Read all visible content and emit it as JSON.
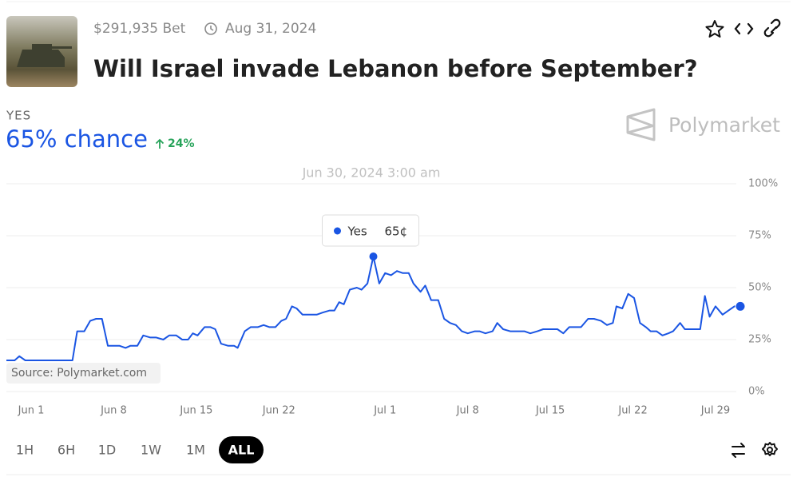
{
  "header": {
    "volume": "$291,935 Bet",
    "end_date": "Aug 31, 2024",
    "title": "Will Israel invade Lebanon before September?"
  },
  "outcome": {
    "label": "YES",
    "chance": "65% chance",
    "change": "24%"
  },
  "brand": "Polymarket",
  "source": "Source: Polymarket.com",
  "ranges": [
    "1H",
    "6H",
    "1D",
    "1W",
    "1M",
    "ALL"
  ],
  "chart_data": {
    "type": "line",
    "x": [
      -1.1,
      -0.4,
      0.0,
      0.5,
      4.5,
      4.9,
      5.5,
      6.0,
      6.5,
      7.0,
      7.5,
      8.5,
      9.0,
      9.4,
      10.0,
      10.5,
      11.1,
      11.6,
      12.2,
      12.7,
      13.3,
      13.8,
      14.3,
      14.7,
      15.1,
      15.7,
      16.2,
      16.6,
      17.1,
      17.7,
      18.2,
      18.5,
      19.1,
      19.6,
      20.2,
      20.7,
      21.2,
      21.7,
      22.2,
      22.6,
      23.1,
      23.5,
      24.0,
      24.6,
      25.2,
      25.7,
      26.3,
      26.7,
      27.1,
      27.5,
      28.0,
      28.6,
      29.0,
      29.5,
      30.0,
      30.5,
      31.0,
      31.5,
      32.0,
      32.5,
      33.0,
      33.4,
      34.0,
      34.4,
      34.9,
      35.5,
      36.0,
      36.5,
      37.0,
      37.5,
      38.0,
      38.6,
      39.0,
      39.5,
      40.1,
      40.5,
      41.0,
      41.6,
      42.1,
      42.8,
      43.3,
      43.9,
      44.4,
      45.1,
      45.6,
      46.1,
      46.6,
      47.1,
      47.6,
      48.2,
      48.7,
      49.3,
      49.8,
      50.3,
      50.6,
      51.1,
      51.6,
      52.1,
      52.6,
      53.1,
      53.5,
      54.0,
      54.5,
      55.0,
      55.4,
      56.0,
      56.4,
      57.1,
      57.7,
      58.1,
      58.5,
      59.0,
      59.6,
      60.1,
      60.6,
      61.1
    ],
    "series": [
      {
        "name": "Yes",
        "color": "#1a55e3",
        "values": [
          15,
          15,
          17,
          15,
          15,
          29,
          29,
          34,
          35,
          35,
          22,
          22,
          21,
          22,
          22,
          27,
          26,
          26,
          25,
          27,
          27,
          25,
          25,
          28,
          27,
          31,
          31,
          30,
          23,
          22,
          22,
          21,
          29,
          31,
          31,
          32,
          31,
          31,
          34,
          35,
          41,
          40,
          37,
          37,
          37,
          38,
          39,
          39,
          43,
          42,
          49,
          50,
          49,
          52,
          65,
          52,
          57,
          56,
          58,
          57,
          57,
          52,
          48,
          51,
          44,
          44,
          35,
          33,
          32,
          29,
          28,
          29,
          29,
          28,
          29,
          33,
          30,
          29,
          29,
          29,
          28,
          29,
          30,
          30,
          30,
          28,
          31,
          31,
          31,
          35,
          35,
          34,
          32,
          33,
          41,
          40,
          47,
          45,
          33,
          31,
          29,
          29,
          27,
          28,
          29,
          33,
          30,
          30,
          30,
          46,
          36,
          41,
          37,
          39,
          41,
          41
        ]
      }
    ],
    "xlim": [
      -1.1,
      61.1
    ],
    "xticks": [
      {
        "value": 1,
        "label": "Jun 1"
      },
      {
        "value": 8,
        "label": "Jun 8"
      },
      {
        "value": 15,
        "label": "Jun 15"
      },
      {
        "value": 22,
        "label": "Jun 22"
      },
      {
        "value": 31,
        "label": "Jul 1"
      },
      {
        "value": 38,
        "label": "Jul 8"
      },
      {
        "value": 45,
        "label": "Jul 15"
      },
      {
        "value": 52,
        "label": "Jul 22"
      },
      {
        "value": 59,
        "label": "Jul 29"
      }
    ],
    "ylim": [
      0,
      100
    ],
    "yticks": [
      {
        "value": 0,
        "label": "0%"
      },
      {
        "value": 25,
        "label": "25%"
      },
      {
        "value": 50,
        "label": "50%"
      },
      {
        "value": 75,
        "label": "75%"
      },
      {
        "value": 100,
        "label": "100%"
      }
    ],
    "grid": true,
    "tooltip": {
      "title": "Jun 30, 2024 3:00 am",
      "x": 30.0,
      "value": 65,
      "label": "65¢"
    }
  }
}
